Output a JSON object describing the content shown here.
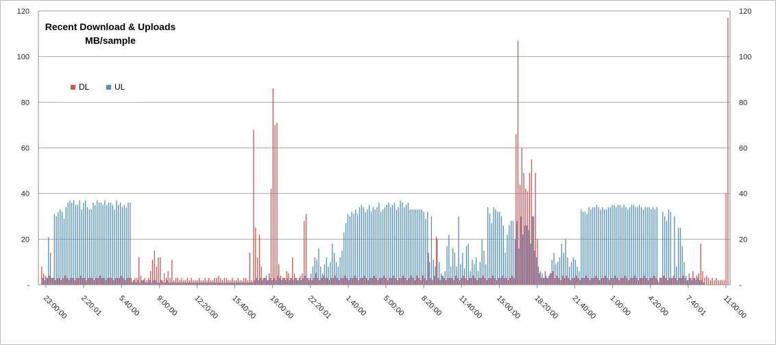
{
  "chart_data": {
    "type": "bar",
    "title": "Recent Download & Uploads",
    "subtitle": "MB/sample",
    "ylim": [
      0,
      120
    ],
    "yticks": [
      "-",
      "20",
      "40",
      "60",
      "80",
      "100",
      "120"
    ],
    "secondary_yticks": [
      "-",
      "20",
      "40",
      "60",
      "80",
      "100",
      "120"
    ],
    "x_tick_labels": [
      "23:00:00",
      "2:20:01",
      "5:40:00",
      "9:00:00",
      "12:20:00",
      "15:40:00",
      "19:00:00",
      "22:20:01",
      "1:40:00",
      "5:00:00",
      "8:20:00",
      "11:40:00",
      "15:00:00",
      "18:20:00",
      "21:40:00",
      "1:00:00",
      "4:20:00",
      "7:40:01",
      "11:00:00"
    ],
    "grid": "horizontal",
    "legend_position": "top-left",
    "colors": {
      "DL": "#d9534f",
      "UL": "#4f8fc9",
      "grid": "#a6a6a6"
    },
    "series": [
      {
        "name": "DL",
        "values": [
          8,
          5,
          4,
          3,
          4,
          3,
          3,
          2,
          3,
          3,
          2,
          3,
          4,
          3,
          2,
          3,
          3,
          2,
          3,
          3,
          4,
          3,
          3,
          2,
          3,
          3,
          3,
          2,
          3,
          3,
          4,
          3,
          3,
          2,
          3,
          3,
          3,
          2,
          3,
          3,
          3,
          4,
          3,
          2,
          3,
          3,
          3,
          2,
          3,
          3,
          12,
          4,
          2,
          3,
          2,
          3,
          6,
          11,
          15,
          8,
          12,
          12,
          2,
          5,
          3,
          6,
          3,
          11,
          2,
          3,
          3,
          2,
          3,
          2,
          2,
          3,
          2,
          3,
          2,
          2,
          2,
          3,
          2,
          2,
          3,
          2,
          3,
          2,
          2,
          3,
          3,
          4,
          3,
          2,
          3,
          3,
          2,
          2,
          3,
          2,
          2,
          3,
          2,
          2,
          3,
          3,
          2,
          14,
          2,
          68,
          25,
          12,
          22,
          8,
          3,
          3,
          2,
          5,
          42,
          86,
          70,
          71,
          9,
          4,
          3,
          3,
          6,
          5,
          3,
          12,
          5,
          3,
          2,
          4,
          5,
          28,
          31,
          3,
          3,
          2,
          3,
          5,
          3,
          2,
          3,
          4,
          3,
          3,
          2,
          3,
          3,
          4,
          3,
          2,
          3,
          3,
          4,
          3,
          2,
          3,
          3,
          4,
          3,
          2,
          3,
          3,
          4,
          3,
          2,
          3,
          3,
          4,
          3,
          2,
          3,
          3,
          4,
          3,
          2,
          3,
          3,
          4,
          3,
          2,
          3,
          3,
          4,
          3,
          2,
          3,
          4,
          3,
          2,
          4,
          3,
          2,
          4,
          3,
          2,
          14,
          3,
          2,
          4,
          21,
          3,
          2,
          4,
          3,
          2,
          3,
          3,
          3,
          2,
          4,
          3,
          2,
          3,
          4,
          3,
          2,
          3,
          3,
          4,
          3,
          2,
          3,
          3,
          4,
          3,
          2,
          3,
          3,
          4,
          3,
          2,
          3,
          3,
          4,
          3,
          3,
          2,
          3,
          4,
          3,
          66,
          107,
          44,
          60,
          49,
          42,
          41,
          49,
          55,
          30,
          49,
          20,
          5,
          3,
          3,
          6,
          3,
          4,
          5,
          6,
          3,
          4,
          3,
          2,
          4,
          3,
          4,
          3,
          2,
          3,
          3,
          4,
          3,
          2,
          3,
          3,
          4,
          3,
          2,
          3,
          3,
          4,
          3,
          2,
          3,
          3,
          4,
          3,
          2,
          3,
          3,
          4,
          3,
          2,
          3,
          3,
          4,
          3,
          2,
          3,
          3,
          4,
          3,
          2,
          3,
          3,
          4,
          3,
          2,
          3,
          3,
          4,
          3,
          2,
          3,
          3,
          4,
          3,
          2,
          3,
          3,
          4,
          3,
          2,
          3,
          3,
          4,
          3,
          2,
          5,
          3,
          6,
          3,
          4,
          5,
          18,
          6,
          3,
          4,
          3,
          2,
          3,
          2,
          3,
          2,
          2,
          2,
          2,
          40,
          117
        ]
      },
      {
        "name": "UL",
        "values": [
          3,
          2,
          3,
          21,
          14,
          3,
          31,
          30,
          32,
          33,
          32,
          29,
          34,
          36,
          37,
          36,
          37,
          35,
          35,
          37,
          33,
          36,
          37,
          34,
          33,
          33,
          36,
          35,
          37,
          36,
          36,
          35,
          37,
          35,
          36,
          36,
          35,
          33,
          37,
          35,
          36,
          34,
          35,
          34,
          36,
          36,
          1,
          2,
          1,
          2,
          1,
          2,
          2,
          1,
          1,
          2,
          1,
          2,
          2,
          1,
          1,
          2,
          1,
          1,
          2,
          1,
          1,
          1,
          1,
          1,
          1,
          1,
          1,
          1,
          1,
          1,
          1,
          1,
          1,
          1,
          1,
          1,
          1,
          1,
          1,
          1,
          1,
          1,
          1,
          1,
          1,
          1,
          1,
          1,
          1,
          1,
          1,
          1,
          1,
          1,
          1,
          1,
          1,
          1,
          1,
          1,
          1,
          1,
          1,
          2,
          3,
          2,
          3,
          2,
          3,
          4,
          2,
          3,
          2,
          3,
          2,
          4,
          3,
          2,
          3,
          2,
          3,
          2,
          3,
          2,
          3,
          2,
          3,
          2,
          3,
          4,
          3,
          2,
          5,
          8,
          12,
          11,
          16,
          8,
          5,
          9,
          12,
          8,
          10,
          18,
          14,
          10,
          8,
          12,
          15,
          23,
          27,
          31,
          30,
          32,
          31,
          33,
          31,
          34,
          35,
          34,
          32,
          33,
          35,
          32,
          34,
          33,
          34,
          36,
          32,
          33,
          34,
          35,
          36,
          34,
          35,
          36,
          33,
          34,
          37,
          36,
          34,
          35,
          36,
          33,
          33,
          33,
          33,
          33,
          33,
          33,
          32,
          29,
          32,
          10,
          30,
          11,
          8,
          20,
          10,
          5,
          4,
          6,
          17,
          22,
          8,
          16,
          14,
          8,
          30,
          9,
          14,
          7,
          17,
          18,
          6,
          11,
          9,
          12,
          6,
          10,
          20,
          15,
          9,
          34,
          31,
          27,
          34,
          33,
          32,
          32,
          30,
          26,
          14,
          22,
          26,
          28,
          28,
          20,
          28,
          16,
          30,
          22,
          26,
          26,
          24,
          18,
          30,
          15,
          12,
          8,
          6,
          5,
          3,
          4,
          3,
          5,
          11,
          14,
          9,
          10,
          12,
          18,
          14,
          20,
          12,
          8,
          10,
          12,
          11,
          8,
          6,
          33,
          32,
          32,
          31,
          34,
          33,
          34,
          34,
          35,
          34,
          33,
          34,
          33,
          33,
          34,
          34,
          35,
          35,
          34,
          35,
          35,
          34,
          35,
          34,
          33,
          34,
          35,
          35,
          34,
          34,
          35,
          34,
          33,
          34,
          34,
          34,
          33,
          34,
          33,
          34,
          1,
          3,
          32,
          30,
          28,
          33,
          32,
          3,
          30,
          8,
          25,
          25,
          17,
          10,
          4,
          2,
          3,
          2,
          3,
          2,
          3,
          2,
          2,
          1
        ]
      }
    ]
  }
}
